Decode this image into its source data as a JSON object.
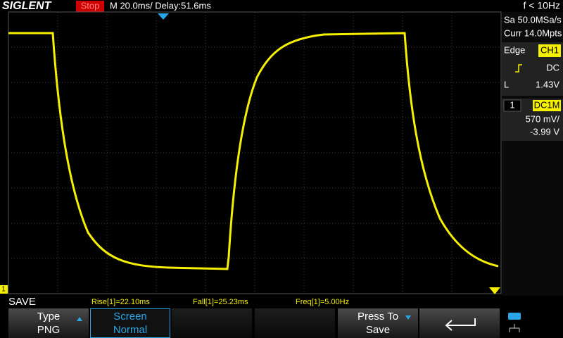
{
  "header": {
    "brand": "SIGLENT",
    "status": "Stop",
    "timebase": "M 20.0ms/ Delay:51.6ms",
    "frequency": "f < 10Hz"
  },
  "acquisition": {
    "sample_rate": "Sa 50.0MSa/s",
    "memory": "Curr 14.0Mpts"
  },
  "trigger": {
    "type": "Edge",
    "source": "CH1",
    "coupling": "DC",
    "level_label": "L",
    "level": "1.43V"
  },
  "channel": {
    "number": "1",
    "coupling": "DC1M",
    "scale": "570 mV/",
    "offset": "-3.99 V"
  },
  "channel_marker": "1",
  "menu": {
    "title": "SAVE",
    "measurements": [
      "Rise[1]=22.10ms",
      "Fall[1]=25.23ms",
      "Freq[1]=5.00Hz"
    ],
    "buttons": [
      {
        "label": "Type",
        "value": "PNG"
      },
      {
        "label": "Screen",
        "value": "Normal"
      },
      {
        "label": "Press To",
        "value": "Save"
      }
    ]
  }
}
